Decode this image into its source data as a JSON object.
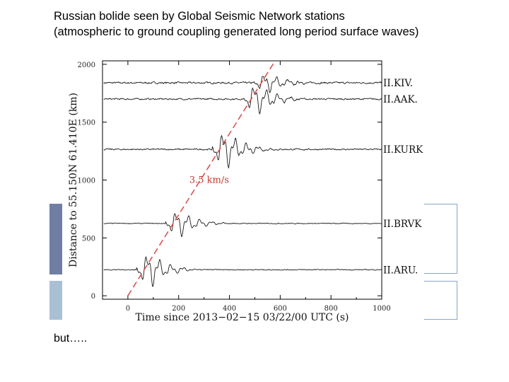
{
  "slide": {
    "title_line1": "Russian bolide seen by Global Seismic Network stations",
    "title_line2": "(atmospheric to ground coupling generated long period surface waves)",
    "footer": "but….."
  },
  "colors": {
    "trace": "#1a1a1a",
    "frame": "#000000",
    "velocity_line": "#d9534f",
    "velocity_label": "#c0392b",
    "deco_dark": "#6e7fa3",
    "deco_light": "#a9bfd6",
    "bracket": "#8aa6c8"
  },
  "chart_data": {
    "type": "line",
    "title": "",
    "xlabel": "Time since 2013−02−15 03/22/00 UTC (s)",
    "ylabel": "Distance to 55.150N 61.410E (km)",
    "xlim": [
      -100,
      1000
    ],
    "ylim": [
      -30,
      2030
    ],
    "x_ticks": [
      0,
      200,
      400,
      600,
      800,
      1000
    ],
    "x_tick_labels": [
      "0",
      "200",
      "400",
      "600",
      "800",
      "1000"
    ],
    "y_ticks": [
      0,
      500,
      1000,
      1500,
      2000
    ],
    "y_tick_labels": [
      "0",
      "500",
      "1000",
      "1500",
      "2000"
    ],
    "velocity": {
      "label": "3.5 km/s",
      "speed_km_s": 3.5,
      "t0": 0,
      "label_time": 320,
      "label_distance": 1000
    },
    "series": [
      {
        "name": "II.KIV.",
        "distance_km": 1840,
        "arrival_s": 525,
        "amplitude_km": 95,
        "noise": 0.22
      },
      {
        "name": "II.AAK.",
        "distance_km": 1700,
        "arrival_s": 485,
        "amplitude_km": 150,
        "noise": 0.12
      },
      {
        "name": "II.KURK",
        "distance_km": 1265,
        "arrival_s": 362,
        "amplitude_km": 190,
        "noise": 0.09
      },
      {
        "name": "II.BRVK",
        "distance_km": 625,
        "arrival_s": 178,
        "amplitude_km": 140,
        "noise": 0.07
      },
      {
        "name": "II.ARU.",
        "distance_km": 225,
        "arrival_s": 64,
        "amplitude_km": 175,
        "noise": 0.06
      }
    ]
  }
}
